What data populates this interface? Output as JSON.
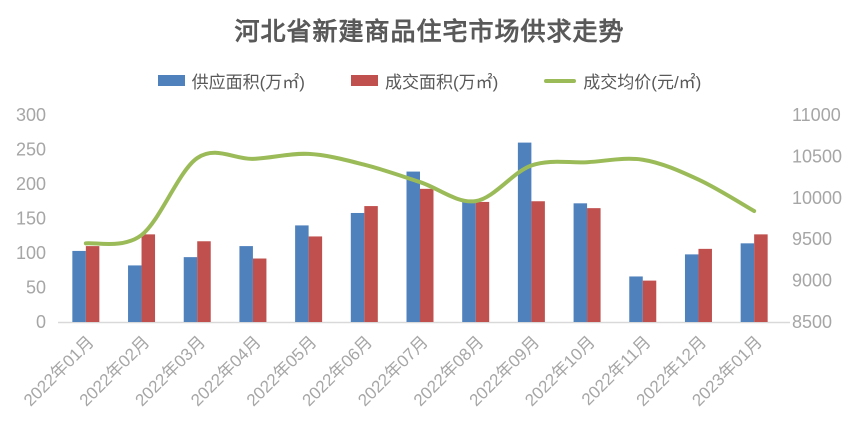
{
  "title": "河北省新建商品住宅市场供求走势",
  "colors": {
    "supply_bar": "#4F81BD",
    "deal_bar": "#C0504D",
    "price_line": "#9BBB59",
    "title_text": "#595959",
    "axis_text": "#A6A6A6",
    "axis_line": "#D9D9D9"
  },
  "chart_data": {
    "type": "bar+line combo",
    "title": "河北省新建商品住宅市场供求走势",
    "categories": [
      "2022年01月",
      "2022年02月",
      "2022年03月",
      "2022年04月",
      "2022年05月",
      "2022年06月",
      "2022年07月",
      "2022年08月",
      "2022年09月",
      "2022年10月",
      "2022年11月",
      "2022年12月",
      "2023年01月"
    ],
    "series": [
      {
        "name": "供应面积(万㎡)",
        "type": "bar",
        "axis": "left",
        "color": "#4F81BD",
        "values": [
          103,
          82,
          94,
          110,
          140,
          158,
          218,
          176,
          260,
          172,
          66,
          98,
          114
        ]
      },
      {
        "name": "成交面积(万㎡)",
        "type": "bar",
        "axis": "left",
        "color": "#C0504D",
        "values": [
          110,
          127,
          117,
          92,
          124,
          168,
          193,
          174,
          175,
          165,
          60,
          106,
          127
        ]
      },
      {
        "name": "成交均价(元/㎡)",
        "type": "line",
        "axis": "right",
        "color": "#9BBB59",
        "values": [
          9450,
          9550,
          10480,
          10470,
          10530,
          10400,
          10190,
          9960,
          10390,
          10430,
          10460,
          10220,
          9840
        ]
      }
    ],
    "left_axis": {
      "min": 0,
      "max": 300,
      "step": 50,
      "ticks": [
        0,
        50,
        100,
        150,
        200,
        250,
        300
      ]
    },
    "right_axis": {
      "min": 8500,
      "max": 11000,
      "step": 500,
      "ticks": [
        8500,
        9000,
        9500,
        10000,
        10500,
        11000
      ]
    },
    "grid": false,
    "legend_position": "top",
    "x_label_rotation_deg": 45
  }
}
